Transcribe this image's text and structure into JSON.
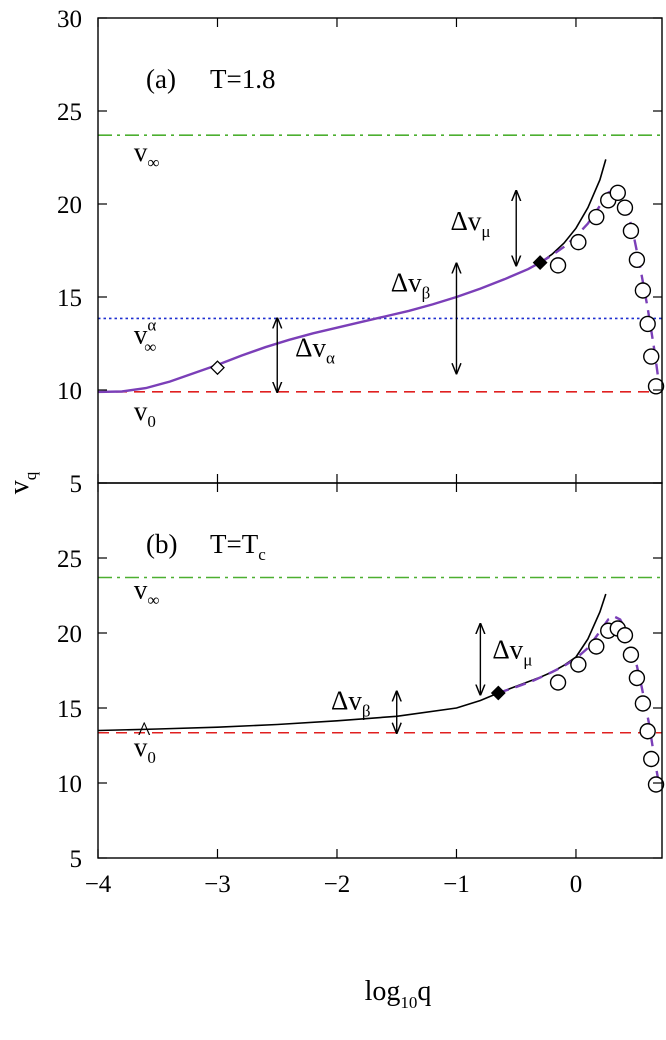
{
  "chart_data": [
    {
      "panel": "a",
      "type": "line",
      "label": "(a)",
      "title": "T=1.8",
      "xlim": [
        -4,
        0.72
      ],
      "ylim": [
        5,
        30
      ],
      "xticks": [
        -4,
        -3,
        -2,
        -1,
        0
      ],
      "yticks": [
        5,
        10,
        15,
        20,
        25,
        30
      ],
      "xlabel": {
        "base": "log",
        "sub": "10",
        "rest": "q"
      },
      "ylabel": {
        "base": "v",
        "sub": "q"
      },
      "hlines": [
        {
          "y": 23.7,
          "color": "#4caf30",
          "style": "dashdot",
          "label": {
            "base": "v",
            "sub": "∞",
            "sup": "",
            "hat": false,
            "x": -3.7,
            "y": 22.3
          }
        },
        {
          "y": 13.85,
          "color": "#1f2fd0",
          "style": "dotted",
          "label": {
            "base": "v",
            "sub": "∞",
            "sup": "α",
            "hat": false,
            "x": -3.7,
            "y": 12.5
          }
        },
        {
          "y": 9.9,
          "color": "#e02020",
          "style": "dashed",
          "label": {
            "base": "v",
            "sub": "0",
            "sup": "",
            "hat": false,
            "x": -3.7,
            "y": 8.4
          }
        }
      ],
      "series": [
        {
          "style": "solid",
          "color": "#000000",
          "x": [
            -4.0,
            -3.8,
            -3.6,
            -3.4,
            -3.2,
            -3.0,
            -2.8,
            -2.6,
            -2.4,
            -2.2,
            -2.0,
            -1.8,
            -1.6,
            -1.4,
            -1.2,
            -1.0,
            -0.8,
            -0.6,
            -0.4,
            -0.3,
            -0.2,
            -0.1,
            0.0,
            0.1,
            0.2,
            0.25
          ],
          "y": [
            9.9,
            9.92,
            10.1,
            10.45,
            10.9,
            11.35,
            11.85,
            12.3,
            12.7,
            13.05,
            13.35,
            13.65,
            13.95,
            14.25,
            14.6,
            15.0,
            15.45,
            15.95,
            16.5,
            16.85,
            17.3,
            17.9,
            18.7,
            19.8,
            21.3,
            22.4
          ]
        },
        {
          "style": "solid",
          "color": "#7b3fb8",
          "x": [
            -4.0,
            -3.8,
            -3.6,
            -3.4,
            -3.2,
            -3.0,
            -2.8,
            -2.6,
            -2.4,
            -2.2,
            -2.0,
            -1.8,
            -1.6,
            -1.4,
            -1.2,
            -1.0,
            -0.8,
            -0.6,
            -0.4,
            -0.3
          ],
          "y": [
            9.9,
            9.92,
            10.1,
            10.45,
            10.9,
            11.35,
            11.85,
            12.3,
            12.7,
            13.05,
            13.35,
            13.65,
            13.95,
            14.25,
            14.6,
            15.0,
            15.45,
            15.95,
            16.5,
            16.85
          ]
        },
        {
          "style": "dashed",
          "color": "#7b3fb8",
          "x": [
            -0.3,
            -0.2,
            -0.1,
            0.0,
            0.1,
            0.2,
            0.27,
            0.32,
            0.37,
            0.42,
            0.48,
            0.54,
            0.6,
            0.66,
            0.71
          ],
          "y": [
            16.85,
            17.25,
            17.7,
            18.25,
            18.95,
            19.9,
            20.6,
            20.8,
            20.6,
            19.9,
            18.4,
            16.5,
            14.4,
            12.0,
            9.6
          ]
        }
      ],
      "circles": {
        "x": [
          -0.15,
          0.02,
          0.17,
          0.27,
          0.35,
          0.41,
          0.46,
          0.51,
          0.56,
          0.6,
          0.63,
          0.67
        ],
        "y": [
          16.7,
          17.95,
          19.3,
          20.2,
          20.6,
          19.8,
          18.55,
          17.0,
          15.35,
          13.55,
          11.8,
          10.2
        ]
      },
      "markers": [
        {
          "shape": "diamond-open",
          "x": -3.0,
          "y": 11.2
        },
        {
          "shape": "diamond-filled",
          "x": -0.3,
          "y": 16.85
        }
      ],
      "arrows": [
        {
          "x": -2.5,
          "y1": 9.9,
          "y2": 13.85,
          "label": {
            "base": "Δv",
            "sub": "α",
            "x": -2.35,
            "y": 11.8
          }
        },
        {
          "x": -1.0,
          "y1": 10.9,
          "y2": 16.8,
          "label": {
            "base": "Δv",
            "sub": "β",
            "x": -1.55,
            "y": 15.3
          }
        },
        {
          "x": -0.5,
          "y1": 16.7,
          "y2": 20.7,
          "label": {
            "base": "Δv",
            "sub": "μ",
            "x": -1.05,
            "y": 18.6
          }
        }
      ]
    },
    {
      "panel": "b",
      "type": "line",
      "label": "(b)",
      "title": "T=T",
      "title_sub": "c",
      "xlim": [
        -4,
        0.72
      ],
      "ylim": [
        5,
        30
      ],
      "xticks": [
        -4,
        -3,
        -2,
        -1,
        0
      ],
      "yticks": [
        5,
        10,
        15,
        20,
        25
      ],
      "xlabel": {
        "base": "log",
        "sub": "10",
        "rest": "q"
      },
      "hlines": [
        {
          "y": 23.7,
          "color": "#4caf30",
          "style": "dashdot",
          "label": {
            "base": "v",
            "sub": "∞",
            "sup": "",
            "hat": false,
            "x": -3.7,
            "y": 22.3
          }
        },
        {
          "y": 13.35,
          "color": "#e02020",
          "style": "dashed",
          "label": {
            "base": "v",
            "sub": "0",
            "sup": "",
            "hat": true,
            "x": -3.7,
            "y": 11.8
          }
        }
      ],
      "series": [
        {
          "style": "solid",
          "color": "#000000",
          "x": [
            -4.0,
            -3.5,
            -3.0,
            -2.5,
            -2.0,
            -1.5,
            -1.0,
            -0.8,
            -0.65,
            -0.5,
            -0.4,
            -0.3,
            -0.2,
            -0.1,
            0.0,
            0.1,
            0.2,
            0.25
          ],
          "y": [
            13.5,
            13.6,
            13.72,
            13.9,
            14.15,
            14.45,
            15.0,
            15.5,
            16.0,
            16.45,
            16.75,
            17.05,
            17.4,
            17.85,
            18.4,
            19.6,
            21.4,
            22.6
          ]
        },
        {
          "style": "dashed",
          "color": "#7b3fb8",
          "x": [
            -0.65,
            -0.5,
            -0.35,
            -0.2,
            -0.1,
            0.0,
            0.1,
            0.2,
            0.27,
            0.32,
            0.37,
            0.43,
            0.49,
            0.55,
            0.61,
            0.66,
            0.7
          ],
          "y": [
            16.0,
            16.4,
            16.85,
            17.4,
            17.8,
            18.3,
            19.0,
            20.1,
            20.9,
            21.1,
            20.9,
            20.0,
            18.5,
            16.4,
            14.0,
            11.5,
            9.7
          ]
        }
      ],
      "circles": {
        "x": [
          -0.15,
          0.02,
          0.17,
          0.27,
          0.35,
          0.41,
          0.46,
          0.51,
          0.56,
          0.6,
          0.63,
          0.67
        ],
        "y": [
          16.7,
          17.9,
          19.1,
          20.15,
          20.3,
          19.85,
          18.55,
          17.0,
          15.3,
          13.45,
          11.6,
          9.9
        ]
      },
      "markers": [
        {
          "shape": "diamond-filled",
          "x": -0.65,
          "y": 16.0
        }
      ],
      "arrows": [
        {
          "x": -1.5,
          "y1": 13.35,
          "y2": 16.1,
          "label": {
            "base": "Δv",
            "sub": "β",
            "x": -2.05,
            "y": 14.9
          }
        },
        {
          "x": -0.8,
          "y1": 15.9,
          "y2": 20.6,
          "label": {
            "base": "Δv",
            "sub": "μ",
            "x": -0.7,
            "y": 18.3
          }
        }
      ]
    }
  ]
}
